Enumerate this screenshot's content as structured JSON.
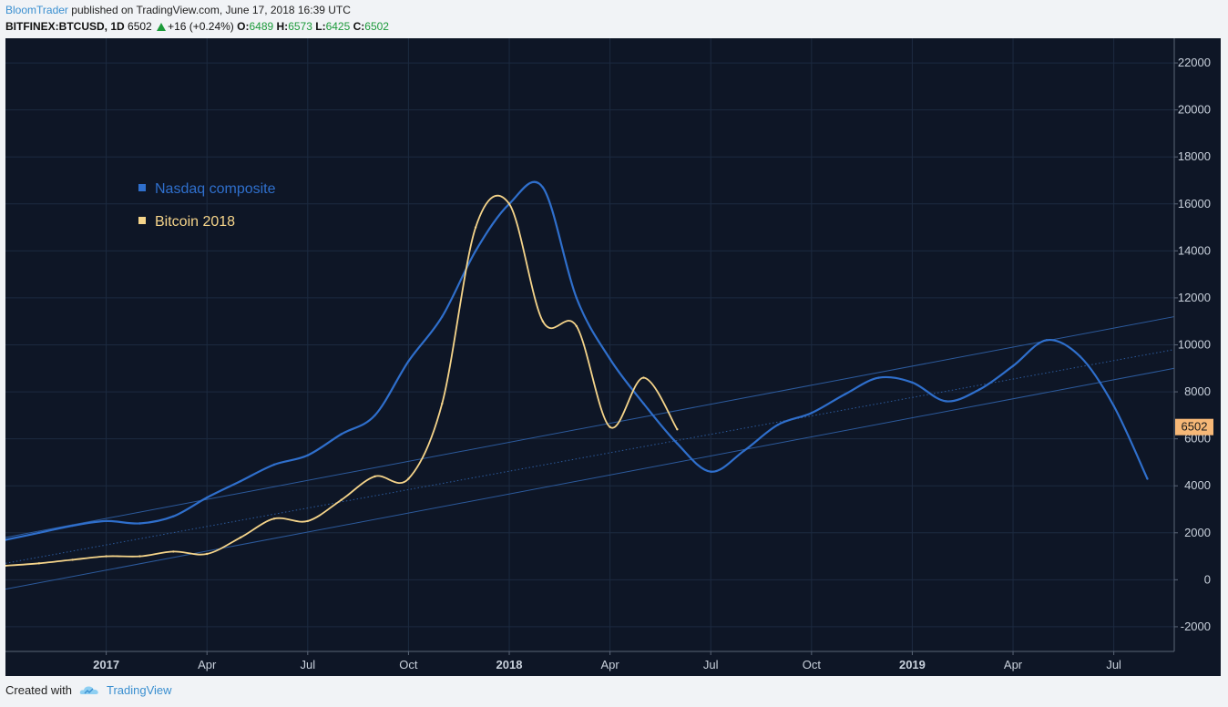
{
  "header": {
    "author": "BloomTrader",
    "published_text": "published on TradingView.com, June 17, 2018 16:39 UTC",
    "symbol": "BITFINEX:BTCUSD, 1D",
    "last": "6502",
    "change": "+16 (+0.24%)",
    "o_label": "O:",
    "o_value": "6489",
    "h_label": "H:",
    "h_value": "6573",
    "l_label": "L:",
    "l_value": "6425",
    "c_label": "C:",
    "c_value": "6502"
  },
  "footer": {
    "created_with": "Created with",
    "brand": "TradingView"
  },
  "colors": {
    "background": "#0e1626",
    "grid": "#1c2a40",
    "nasdaq": "#2f6fcc",
    "bitcoin": "#f5d48a",
    "channel": "#2c5a9c",
    "price_tag": "#f7b877"
  },
  "chart_data": {
    "type": "line",
    "legend": [
      "Nasdaq composite",
      "Bitcoin 2018"
    ],
    "legend_placement": "top-left",
    "price_label": "6502",
    "y_ticks": [
      -2000,
      0,
      2000,
      4000,
      6000,
      8000,
      10000,
      12000,
      14000,
      16000,
      18000,
      20000,
      22000
    ],
    "y_tick_labels": [
      "-2000",
      "0",
      "2000",
      "4000",
      "6000",
      "8000",
      "10000",
      "12000",
      "14000",
      "16000",
      "18000",
      "20000",
      "22000"
    ],
    "ylim": [
      -3050,
      23050
    ],
    "x_tick_labels": [
      "2017",
      "Apr",
      "Jul",
      "Oct",
      "2018",
      "Apr",
      "Jul",
      "Oct",
      "2019",
      "Apr",
      "Jul"
    ],
    "x_tick_bold": [
      true,
      false,
      false,
      false,
      true,
      false,
      false,
      false,
      true,
      false,
      false
    ],
    "x_tick_positions": [
      "2017-01",
      "2017-04",
      "2017-07",
      "2017-10",
      "2018-01",
      "2018-04",
      "2018-07",
      "2018-10",
      "2019-01",
      "2019-04",
      "2019-07"
    ],
    "xlim": [
      "2016-10",
      "2019-08.8"
    ],
    "grid": true,
    "series": [
      {
        "name": "Nasdaq composite",
        "x": [
          "2016-10",
          "2016-11",
          "2016-12",
          "2017-01",
          "2017-02",
          "2017-03",
          "2017-04",
          "2017-05",
          "2017-06",
          "2017-07",
          "2017-08",
          "2017-09",
          "2017-10",
          "2017-11",
          "2017-12",
          "2018-01",
          "2018-02",
          "2018-03",
          "2018-04",
          "2018-05",
          "2018-06",
          "2018-07",
          "2018-08",
          "2018-09",
          "2018-10",
          "2018-11",
          "2018-12",
          "2019-01",
          "2019-02",
          "2019-03",
          "2019-04",
          "2019-05",
          "2019-06",
          "2019-07",
          "2019-08"
        ],
        "values": [
          1700,
          2000,
          2300,
          2500,
          2400,
          2700,
          3500,
          4200,
          4900,
          5300,
          6200,
          7000,
          9300,
          11200,
          14000,
          16000,
          16700,
          12000,
          9400,
          7500,
          5800,
          4600,
          5500,
          6600,
          7100,
          7900,
          8600,
          8400,
          7600,
          8100,
          9100,
          10200,
          9500,
          7400,
          4300
        ]
      },
      {
        "name": "Bitcoin 2018",
        "x": [
          "2016-10",
          "2016-11",
          "2016-12",
          "2017-01",
          "2017-02",
          "2017-03",
          "2017-04",
          "2017-05",
          "2017-06",
          "2017-07",
          "2017-08",
          "2017-09",
          "2017-10",
          "2017-11",
          "2017-12",
          "2018-01",
          "2018-02",
          "2018-03",
          "2018-04",
          "2018-05",
          "2018-06"
        ],
        "values": [
          600,
          700,
          850,
          1000,
          1000,
          1200,
          1100,
          1800,
          2600,
          2500,
          3400,
          4400,
          4300,
          7500,
          15000,
          16000,
          11000,
          10800,
          6500,
          8600,
          6400
        ]
      }
    ],
    "channel": {
      "upper": {
        "x": [
          "2016-10",
          "2019-08.8"
        ],
        "values": [
          1800,
          11200
        ]
      },
      "middle": {
        "x": [
          "2016-10",
          "2019-08.8"
        ],
        "values": [
          700,
          9800
        ]
      },
      "lower": {
        "x": [
          "2016-10",
          "2019-08.8"
        ],
        "values": [
          -400,
          9000
        ]
      }
    }
  }
}
